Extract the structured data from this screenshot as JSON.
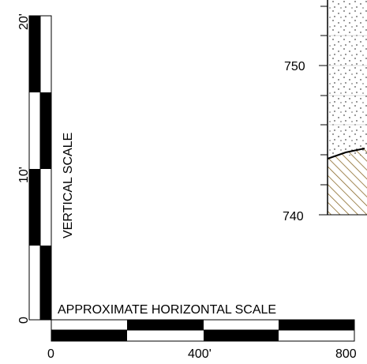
{
  "vertical_scale": {
    "label": "VERTICAL SCALE",
    "ticks": [
      "0",
      "10'",
      "20'"
    ]
  },
  "horizontal_scale": {
    "label": "APPROXIMATE HORIZONTAL SCALE",
    "ticks": [
      "0",
      "400'",
      "800"
    ]
  },
  "elevation_column": {
    "ticks": [
      "750",
      "740"
    ],
    "units": {
      "upper": "dotted sand",
      "lower": "hatched brown"
    },
    "colors": {
      "hatch": "#8a6a2a"
    }
  }
}
